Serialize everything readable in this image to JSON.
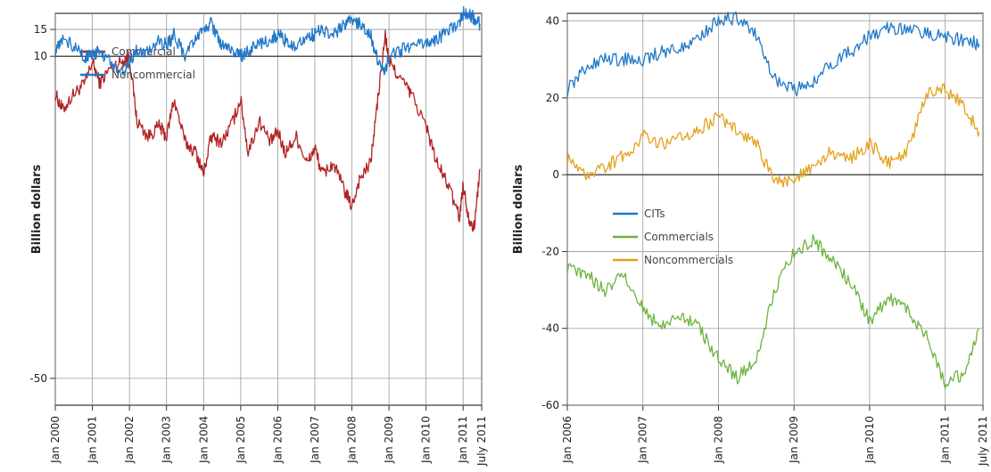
{
  "chart_data": [
    {
      "type": "line",
      "ylabel": "Billion dollars",
      "xlim": [
        2000.0,
        2011.5
      ],
      "ylim": [
        -55,
        18
      ],
      "ytick_values": [
        -50,
        10,
        15
      ],
      "ytick_labels": [
        "-50",
        "10",
        "15"
      ],
      "zero_line": 10,
      "xtick_values": [
        2000,
        2001,
        2002,
        2003,
        2004,
        2005,
        2006,
        2007,
        2008,
        2009,
        2010,
        2011,
        2011.5
      ],
      "xtick_labels": [
        "Jan 2000",
        "Jan 2001",
        "Jan 2002",
        "Jan 2003",
        "Jan 2004",
        "Jan 2005",
        "Jan 2006",
        "Jan 2007",
        "Jan 2008",
        "Jan 2009",
        "Jan 2010",
        "Jan 2011",
        "July 2011"
      ],
      "grid": true,
      "legend_position": "top-left",
      "series": [
        {
          "name": "Commercial",
          "color": "#b22222",
          "x": [
            2000.0,
            2000.2,
            2000.5,
            2000.8,
            2001.0,
            2001.2,
            2001.5,
            2001.8,
            2002.0,
            2002.2,
            2002.5,
            2002.8,
            2003.0,
            2003.2,
            2003.5,
            2003.8,
            2004.0,
            2004.2,
            2004.5,
            2004.8,
            2005.0,
            2005.2,
            2005.5,
            2005.8,
            2006.0,
            2006.2,
            2006.5,
            2006.8,
            2007.0,
            2007.2,
            2007.5,
            2007.8,
            2008.0,
            2008.2,
            2008.5,
            2008.7,
            2008.9,
            2009.0,
            2009.3,
            2009.6,
            2010.0,
            2010.3,
            2010.6,
            2010.9,
            2011.0,
            2011.15,
            2011.3,
            2011.45
          ],
          "y": [
            3,
            0,
            3,
            5,
            9,
            5,
            8,
            9,
            10,
            -2,
            -5,
            -3,
            -5,
            2,
            -6,
            -8,
            -12,
            -5,
            -6,
            -2,
            2,
            -8,
            -2,
            -6,
            -4,
            -8,
            -5,
            -10,
            -7,
            -12,
            -10,
            -15,
            -18,
            -13,
            -10,
            2,
            14,
            9,
            6,
            3,
            -3,
            -10,
            -14,
            -20,
            -14,
            -20,
            -22,
            -11
          ]
        },
        {
          "name": "Noncommercial",
          "color": "#1f78c8",
          "x": [
            2000.0,
            2000.2,
            2000.5,
            2000.8,
            2001.0,
            2001.2,
            2001.5,
            2001.8,
            2002.0,
            2002.2,
            2002.5,
            2002.8,
            2003.0,
            2003.2,
            2003.5,
            2003.8,
            2004.0,
            2004.2,
            2004.5,
            2004.8,
            2005.0,
            2005.2,
            2005.5,
            2005.8,
            2006.0,
            2006.2,
            2006.5,
            2006.8,
            2007.0,
            2007.2,
            2007.5,
            2007.8,
            2008.0,
            2008.2,
            2008.5,
            2008.7,
            2008.9,
            2009.0,
            2009.3,
            2009.6,
            2010.0,
            2010.3,
            2010.6,
            2010.9,
            2011.0,
            2011.15,
            2011.3,
            2011.45
          ],
          "y": [
            11,
            13,
            12,
            10,
            10,
            11,
            9,
            7,
            9,
            11,
            11,
            13,
            12,
            14,
            10,
            13,
            15,
            16,
            12,
            11,
            10,
            11,
            12,
            13,
            14,
            13,
            12,
            14,
            14,
            15,
            14,
            16,
            17,
            16,
            14,
            9,
            7,
            10,
            11,
            12,
            12,
            13,
            15,
            16,
            18,
            18,
            17,
            16
          ]
        }
      ]
    },
    {
      "type": "line",
      "ylabel": "Billion dollars",
      "xlim": [
        2006.0,
        2011.5
      ],
      "ylim": [
        -60,
        42
      ],
      "ytick_values": [
        -60,
        -40,
        -20,
        0,
        20,
        40
      ],
      "ytick_labels": [
        "-60",
        "-40",
        "-20",
        "0",
        "20",
        "40"
      ],
      "xtick_values": [
        2006,
        2007,
        2008,
        2009,
        2010,
        2011,
        2011.5
      ],
      "xtick_labels": [
        "Jan 2006",
        "Jan 2007",
        "Jan 2008",
        "Jan 2009",
        "Jan 2010",
        "Jan 2011",
        "July 2011"
      ],
      "grid": true,
      "legend_position": "left-center",
      "series": [
        {
          "name": "CITs",
          "color": "#1f78c8",
          "x": [
            2006.0,
            2006.25,
            2006.5,
            2006.75,
            2007.0,
            2007.25,
            2007.5,
            2007.75,
            2008.0,
            2008.25,
            2008.5,
            2008.75,
            2009.0,
            2009.25,
            2009.5,
            2009.75,
            2010.0,
            2010.25,
            2010.5,
            2010.75,
            2011.0,
            2011.25,
            2011.45
          ],
          "y": [
            22,
            28,
            30,
            30,
            30,
            32,
            33,
            36,
            40,
            41,
            36,
            25,
            22,
            24,
            29,
            32,
            36,
            38,
            38,
            37,
            36,
            35,
            34
          ]
        },
        {
          "name": "Commercials",
          "color": "#6db33f",
          "x": [
            2006.0,
            2006.25,
            2006.5,
            2006.75,
            2007.0,
            2007.25,
            2007.5,
            2007.75,
            2008.0,
            2008.25,
            2008.5,
            2008.75,
            2009.0,
            2009.25,
            2009.5,
            2009.75,
            2010.0,
            2010.25,
            2010.5,
            2010.75,
            2011.0,
            2011.25,
            2011.45
          ],
          "y": [
            -24,
            -26,
            -30,
            -26,
            -35,
            -40,
            -36,
            -40,
            -48,
            -53,
            -48,
            -30,
            -20,
            -17,
            -22,
            -28,
            -38,
            -32,
            -35,
            -42,
            -54,
            -52,
            -40
          ]
        },
        {
          "name": "Noncommercials",
          "color": "#e4a11b",
          "x": [
            2006.0,
            2006.25,
            2006.5,
            2006.75,
            2007.0,
            2007.25,
            2007.5,
            2007.75,
            2008.0,
            2008.25,
            2008.5,
            2008.75,
            2009.0,
            2009.25,
            2009.5,
            2009.75,
            2010.0,
            2010.25,
            2010.5,
            2010.75,
            2011.0,
            2011.25,
            2011.45
          ],
          "y": [
            4,
            0,
            2,
            5,
            10,
            8,
            10,
            12,
            15,
            12,
            8,
            -2,
            -1,
            2,
            6,
            4,
            8,
            3,
            6,
            21,
            22,
            18,
            11
          ]
        }
      ]
    }
  ]
}
